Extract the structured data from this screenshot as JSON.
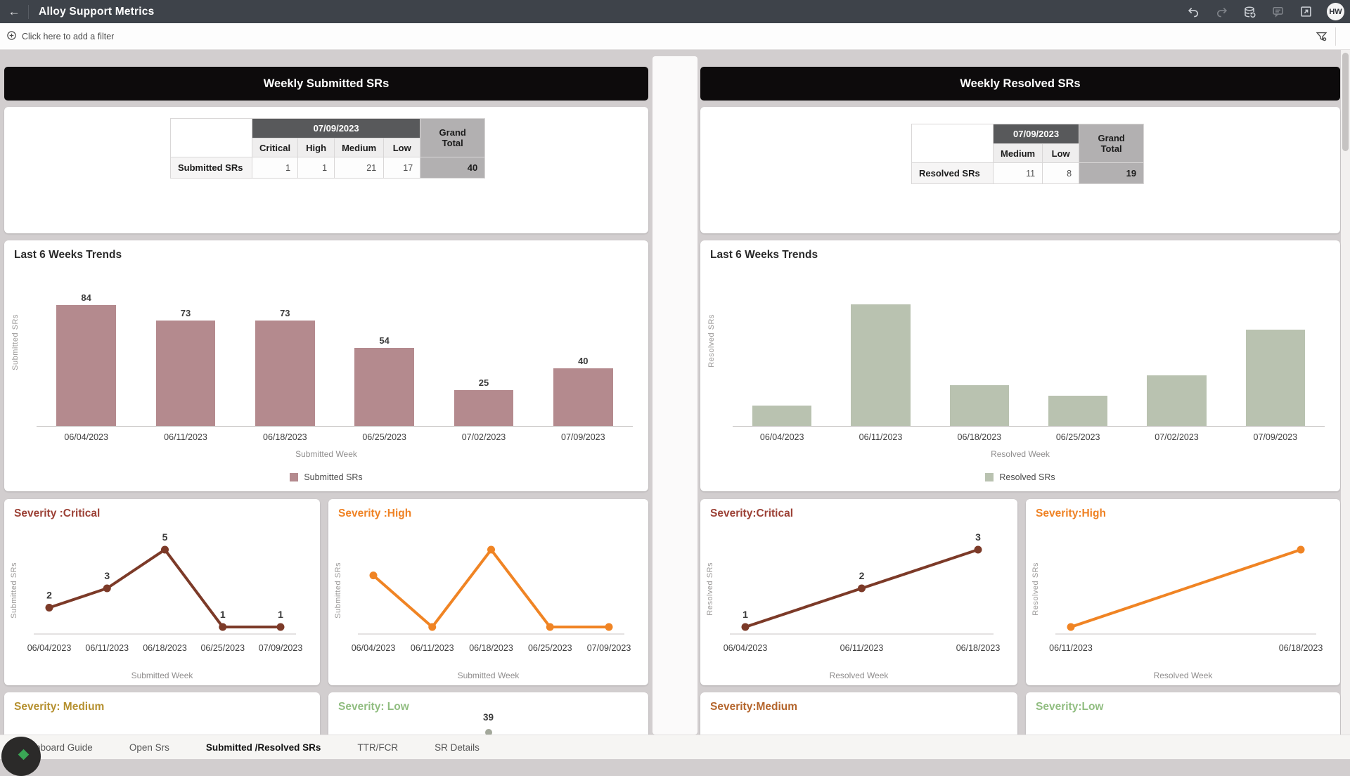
{
  "topbar": {
    "title": "Alloy Support Metrics",
    "avatar_initials": "HW"
  },
  "filterbar": {
    "add_filter_label": "Click here to add a filter"
  },
  "panels": {
    "submitted": {
      "header": "Weekly Submitted SRs",
      "table": {
        "date_header": "07/09/2023",
        "grand_total_label": "Grand Total",
        "columns": [
          "Critical",
          "High",
          "Medium",
          "Low"
        ],
        "row_label": "Submitted SRs",
        "values": [
          1,
          1,
          21,
          17
        ],
        "grand_total": 40
      }
    },
    "resolved": {
      "header": "Weekly Resolved SRs",
      "table": {
        "date_header": "07/09/2023",
        "grand_total_label": "Grand Total",
        "columns": [
          "Medium",
          "Low"
        ],
        "row_label": "Resolved SRs",
        "values": [
          11,
          8
        ],
        "grand_total": 19
      }
    }
  },
  "chart_data": [
    {
      "id": "submitted-weekly-trend",
      "type": "bar",
      "title": "Last 6 Weeks Trends",
      "categories": [
        "06/04/2023",
        "06/11/2023",
        "06/18/2023",
        "06/25/2023",
        "07/02/2023",
        "07/09/2023"
      ],
      "values": [
        84,
        73,
        73,
        54,
        25,
        40
      ],
      "data_labels": true,
      "color": "#b48a8e",
      "xlabel": "Submitted Week",
      "ylabel": "Submitted SRs",
      "legend": "Submitted SRs",
      "ylim": [
        0,
        95
      ]
    },
    {
      "id": "resolved-weekly-trend",
      "type": "bar",
      "title": "Last 6 Weeks Trends",
      "categories": [
        "06/04/2023",
        "06/11/2023",
        "06/18/2023",
        "06/25/2023",
        "07/02/2023",
        "07/09/2023"
      ],
      "values": [
        4,
        24,
        8,
        6,
        10,
        19
      ],
      "data_labels": false,
      "color": "#b9c2b0",
      "xlabel": "Resolved Week",
      "ylabel": "Resolved SRs",
      "legend": "Resolved SRs",
      "ylim": [
        0,
        27
      ]
    },
    {
      "id": "submitted-severity-critical",
      "type": "line",
      "title": "Severity :Critical",
      "title_color": "#9c4136",
      "categories": [
        "06/04/2023",
        "06/11/2023",
        "06/18/2023",
        "06/25/2023",
        "07/09/2023"
      ],
      "values": [
        2,
        3,
        5,
        1,
        1
      ],
      "data_labels": true,
      "color": "#7c3a28",
      "xlabel": "Submitted Week",
      "ylabel": "Submitted SRs"
    },
    {
      "id": "submitted-severity-high",
      "type": "line",
      "title": "Severity :High",
      "title_color": "#ef8224",
      "categories": [
        "06/04/2023",
        "06/11/2023",
        "06/18/2023",
        "06/25/2023",
        "07/09/2023"
      ],
      "values": [
        3,
        1,
        4,
        1,
        1
      ],
      "data_labels": false,
      "color": "#f08424",
      "xlabel": "Submitted Week",
      "ylabel": "Submitted SRs"
    },
    {
      "id": "resolved-severity-critical",
      "type": "line",
      "title": "Severity:Critical",
      "title_color": "#9c4136",
      "categories": [
        "06/04/2023",
        "06/11/2023",
        "06/18/2023"
      ],
      "values": [
        1,
        2,
        3
      ],
      "data_labels": true,
      "color": "#7c3a28",
      "xlabel": "Resolved Week",
      "ylabel": "Resolved SRs"
    },
    {
      "id": "resolved-severity-high",
      "type": "line",
      "title": "Severity:High",
      "title_color": "#ef8224",
      "categories": [
        "06/11/2023",
        "06/18/2023"
      ],
      "values": [
        1,
        2
      ],
      "data_labels": false,
      "color": "#f08424",
      "xlabel": "Resolved Week",
      "ylabel": "Resolved SRs"
    },
    {
      "id": "submitted-severity-medium-peek",
      "type": "line",
      "title": "Severity: Medium",
      "title_color": "#b5902f"
    },
    {
      "id": "submitted-severity-low-peek",
      "type": "line",
      "title": "Severity: Low",
      "title_color": "#90bd80",
      "peek_value": 39
    },
    {
      "id": "resolved-severity-medium-peek",
      "type": "line",
      "title": "Severity:Medium",
      "title_color": "#b4652c"
    },
    {
      "id": "resolved-severity-low-peek",
      "type": "line",
      "title": "Severity:Low",
      "title_color": "#90bd80"
    }
  ],
  "tabs": {
    "items": [
      {
        "label": "Dashboard Guide",
        "active": false
      },
      {
        "label": "Open Srs",
        "active": false
      },
      {
        "label": "Submitted /Resolved SRs",
        "active": true
      },
      {
        "label": "TTR/FCR",
        "active": false
      },
      {
        "label": "SR Details",
        "active": false
      }
    ]
  }
}
